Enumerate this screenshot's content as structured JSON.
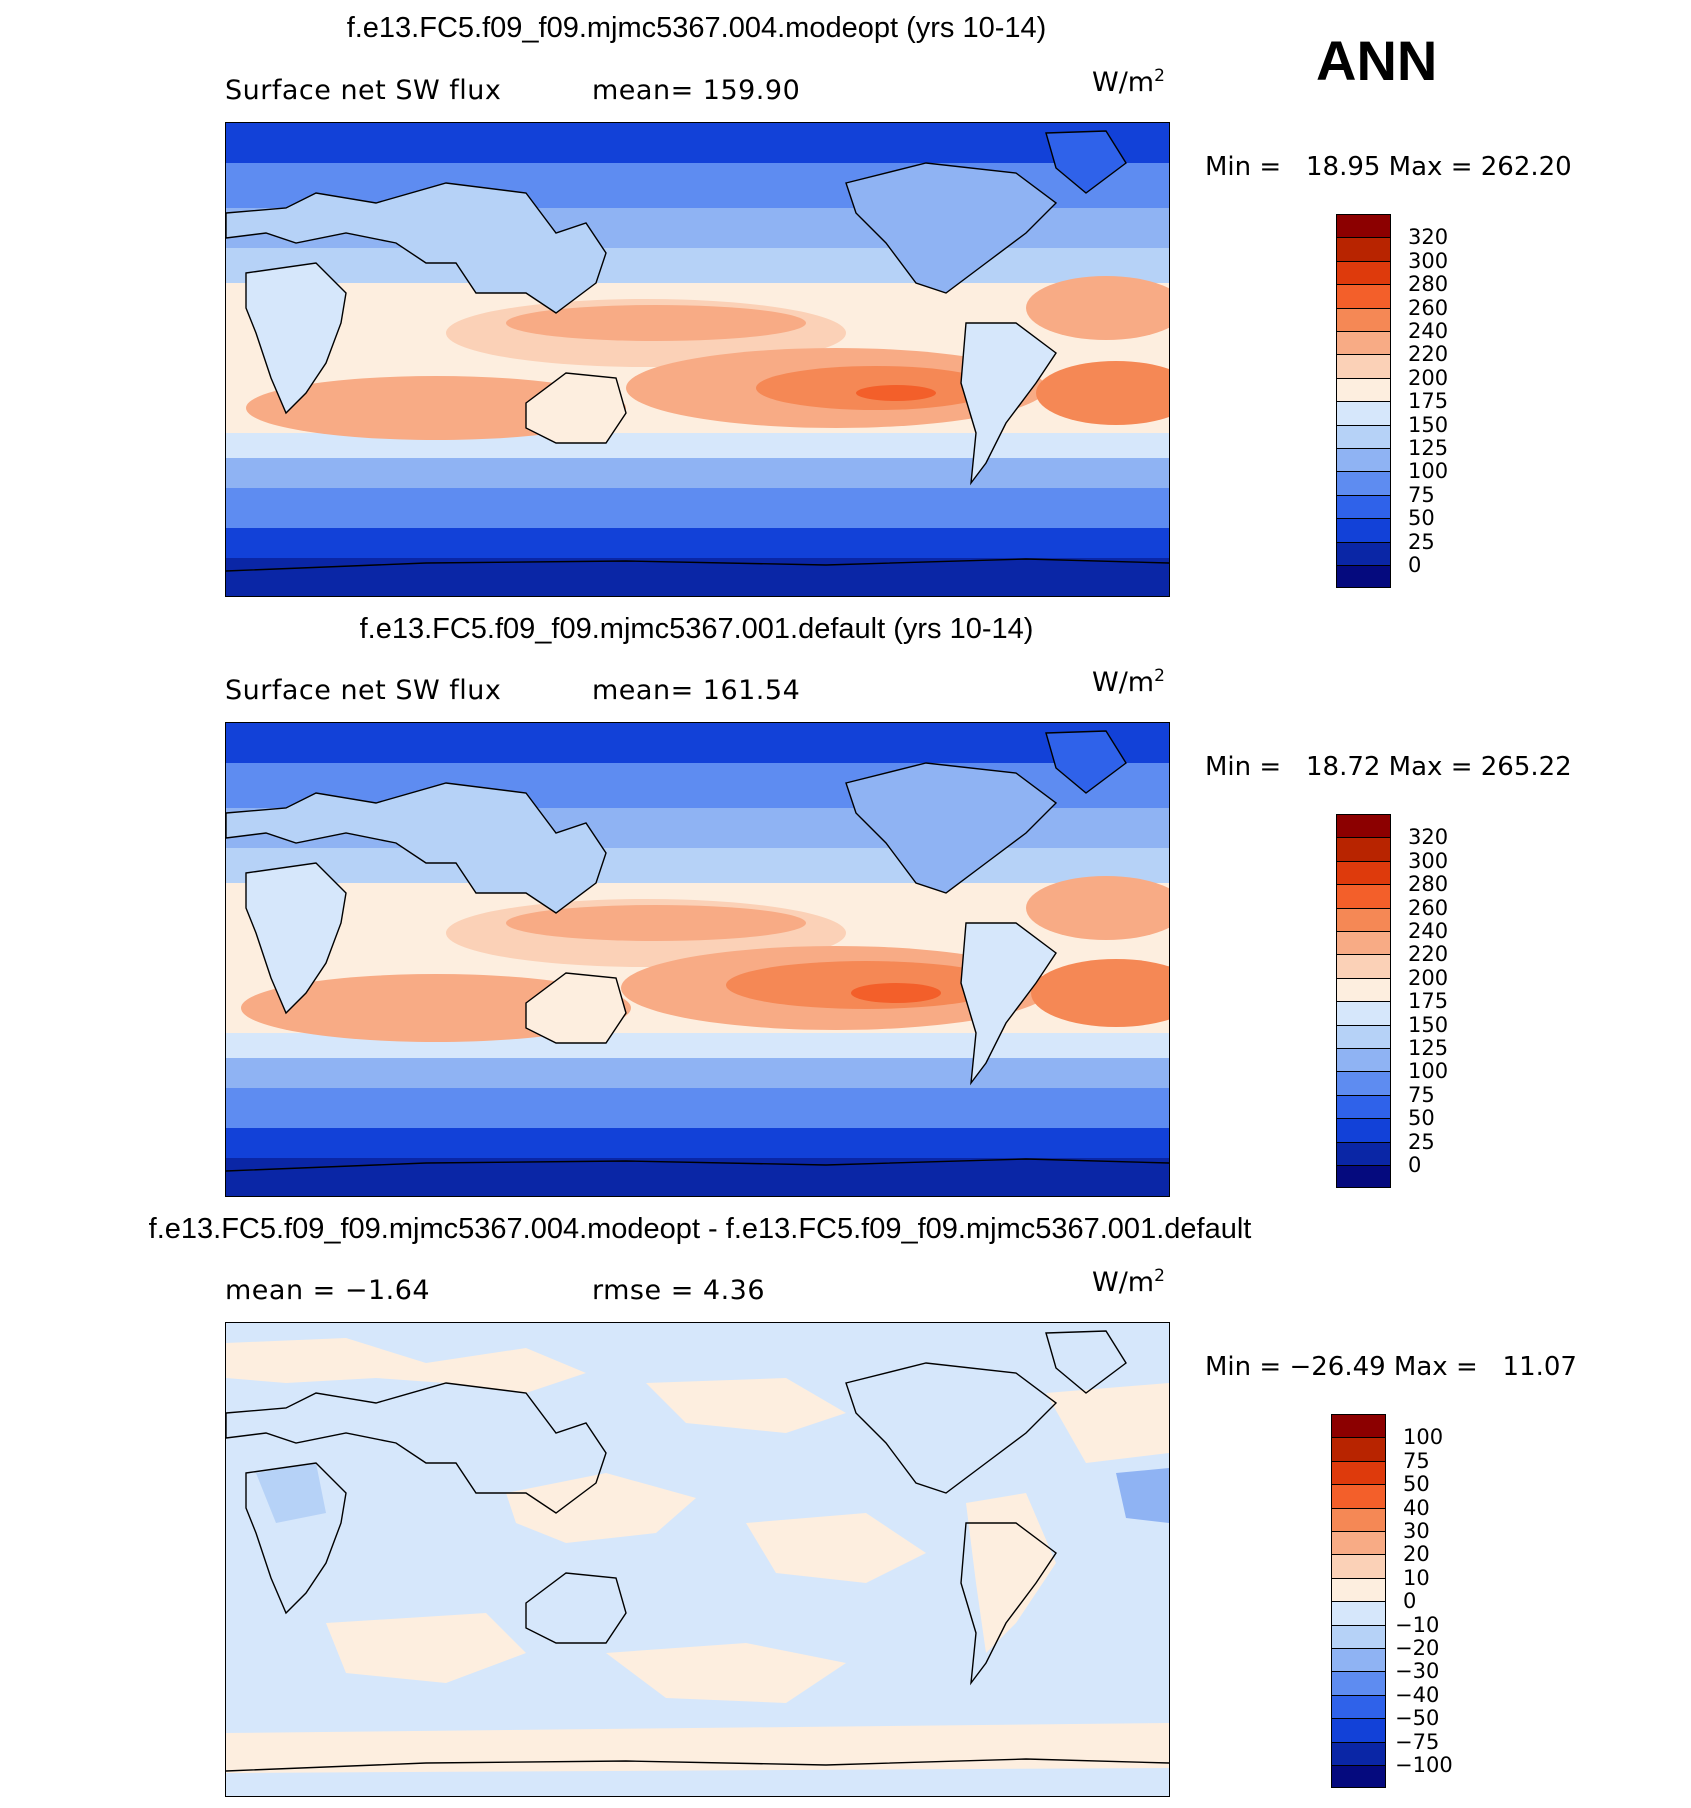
{
  "header": {
    "season": "ANN"
  },
  "panels": [
    {
      "title": "f.e13.FC5.f09_f09.mjmc5367.004.modeopt (yrs 10-14)",
      "left_label": "Surface net SW flux",
      "mean_label": "mean=  159.90",
      "units": "W/m",
      "units_sup": "2",
      "minmax": "Min =   18.95 Max = 262.20"
    },
    {
      "title": "f.e13.FC5.f09_f09.mjmc5367.001.default (yrs 10-14)",
      "left_label": "Surface net SW flux",
      "mean_label": "mean=  161.54",
      "units": "W/m",
      "units_sup": "2",
      "minmax": "Min =   18.72 Max = 265.22"
    },
    {
      "title": "f.e13.FC5.f09_f09.mjmc5367.004.modeopt - f.e13.FC5.f09_f09.mjmc5367.001.default",
      "left_label": "mean =   −1.64",
      "mean_label": "rmse =    4.36",
      "units": "W/m",
      "units_sup": "2",
      "minmax": "Min = −26.49 Max =   11.07"
    }
  ],
  "chart_data": [
    {
      "type": "heatmap",
      "title": "f.e13.FC5.f09_f09.mjmc5367.004.modeopt (yrs 10-14)",
      "variable": "Surface net SW flux",
      "units": "W/m2",
      "mean": 159.9,
      "min": 18.95,
      "max": 262.2,
      "colorbar": {
        "levels": [
          "320",
          "300",
          "280",
          "260",
          "240",
          "220",
          "200",
          "175",
          "150",
          "125",
          "100",
          "75",
          "50",
          "25",
          "0"
        ],
        "colors": [
          "#8c0000",
          "#b82400",
          "#de3a0c",
          "#f35f2a",
          "#f58855",
          "#f8ab85",
          "#fbd1b7",
          "#fdeedf",
          "#d6e7fb",
          "#b6d2f7",
          "#8fb3f3",
          "#5e8cf1",
          "#2f62ea",
          "#1241d8",
          "#0a26a6",
          "#050a7e"
        ]
      }
    },
    {
      "type": "heatmap",
      "title": "f.e13.FC5.f09_f09.mjmc5367.001.default (yrs 10-14)",
      "variable": "Surface net SW flux",
      "units": "W/m2",
      "mean": 161.54,
      "min": 18.72,
      "max": 265.22,
      "colorbar": {
        "levels": [
          "320",
          "300",
          "280",
          "260",
          "240",
          "220",
          "200",
          "175",
          "150",
          "125",
          "100",
          "75",
          "50",
          "25",
          "0"
        ],
        "colors": [
          "#8c0000",
          "#b82400",
          "#de3a0c",
          "#f35f2a",
          "#f58855",
          "#f8ab85",
          "#fbd1b7",
          "#fdeedf",
          "#d6e7fb",
          "#b6d2f7",
          "#8fb3f3",
          "#5e8cf1",
          "#2f62ea",
          "#1241d8",
          "#0a26a6",
          "#050a7e"
        ]
      }
    },
    {
      "type": "heatmap",
      "title": "f.e13.FC5.f09_f09.mjmc5367.004.modeopt - f.e13.FC5.f09_f09.mjmc5367.001.default",
      "units": "W/m2",
      "mean": -1.64,
      "rmse": 4.36,
      "min": -26.49,
      "max": 11.07,
      "colorbar": {
        "levels": [
          "100",
          "75",
          "50",
          "40",
          "30",
          "20",
          "10",
          "0",
          "−10",
          "−20",
          "−30",
          "−40",
          "−50",
          "−75",
          "−100"
        ],
        "colors": [
          "#8c0000",
          "#b82400",
          "#de3a0c",
          "#f35f2a",
          "#f58855",
          "#f8ab85",
          "#fbd1b7",
          "#fdeedf",
          "#d6e7fb",
          "#b6d2f7",
          "#8fb3f3",
          "#5e8cf1",
          "#2f62ea",
          "#1241d8",
          "#0a26a6",
          "#050a7e"
        ]
      }
    }
  ]
}
